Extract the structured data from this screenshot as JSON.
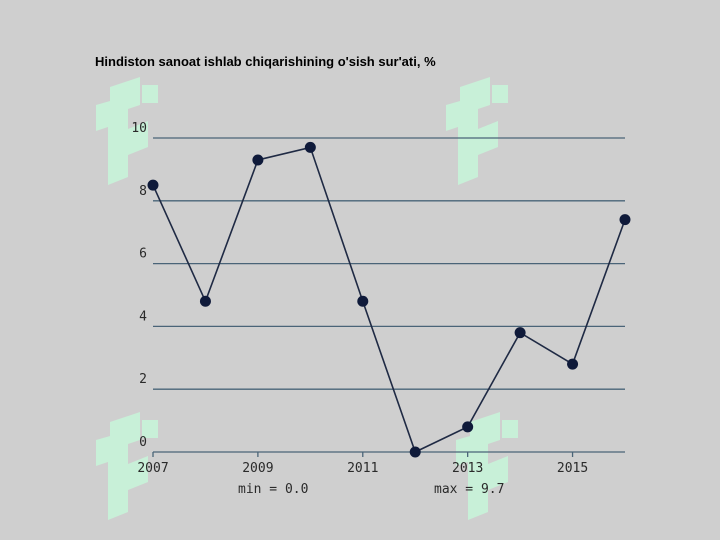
{
  "chart_data": {
    "type": "line",
    "title": "Hindiston sanoat ishlab chiqarishining o'sish sur'ati, %",
    "xlabel": "",
    "ylabel": "",
    "x": [
      2007,
      2008,
      2009,
      2010,
      2011,
      2012,
      2013,
      2014,
      2015,
      2016
    ],
    "series": [
      {
        "values": [
          8.5,
          4.8,
          9.3,
          9.7,
          4.8,
          0.0,
          0.8,
          3.8,
          2.8,
          7.4
        ]
      }
    ],
    "x_ticks": [
      "2007",
      "2009",
      "2011",
      "2013",
      "2015"
    ],
    "y_ticks": [
      "0",
      "2",
      "4",
      "6",
      "8",
      "10"
    ],
    "xlim": [
      2007,
      2016
    ],
    "ylim": [
      0,
      10
    ],
    "grid": "horizontal",
    "min_label": "min = 0.0",
    "max_label": "max = 9.7",
    "colors": {
      "line": "#1f2a44",
      "marker": "#0f1a3a",
      "grid": "#4a6478",
      "watermark": "#c8f0d8",
      "background": "#cfcfcf"
    }
  }
}
